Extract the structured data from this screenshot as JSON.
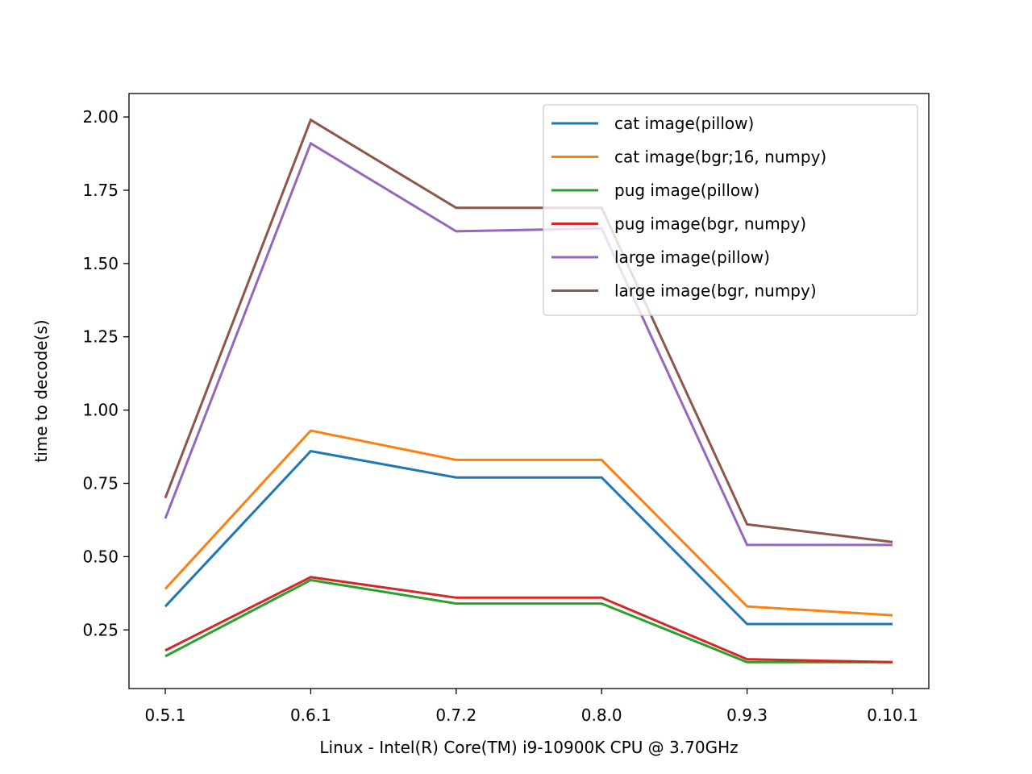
{
  "chart_data": {
    "type": "line",
    "title": "",
    "xlabel": "Linux - Intel(R) Core(TM) i9-10900K CPU @ 3.70GHz",
    "ylabel": "time to decode(s)",
    "categories": [
      "0.5.1",
      "0.6.1",
      "0.7.2",
      "0.8.0",
      "0.9.3",
      "0.10.1"
    ],
    "ylim": [
      0.05,
      2.08
    ],
    "yticks": [
      "0.25",
      "0.50",
      "0.75",
      "1.00",
      "1.25",
      "1.50",
      "1.75",
      "2.00"
    ],
    "grid": false,
    "legend_position": "top-right",
    "series": [
      {
        "name": "cat image(pillow)",
        "color": "#1f77b4",
        "values": [
          0.33,
          0.86,
          0.77,
          0.77,
          0.27,
          0.27
        ]
      },
      {
        "name": "cat image(bgr;16, numpy)",
        "color": "#ff7f0e",
        "values": [
          0.39,
          0.93,
          0.83,
          0.83,
          0.33,
          0.3
        ]
      },
      {
        "name": "pug image(pillow)",
        "color": "#2ca02c",
        "values": [
          0.16,
          0.42,
          0.34,
          0.34,
          0.14,
          0.14
        ]
      },
      {
        "name": "pug image(bgr, numpy)",
        "color": "#d62728",
        "values": [
          0.18,
          0.43,
          0.36,
          0.36,
          0.15,
          0.14
        ]
      },
      {
        "name": "large image(pillow)",
        "color": "#9467bd",
        "values": [
          0.63,
          1.91,
          1.61,
          1.62,
          0.54,
          0.54
        ]
      },
      {
        "name": "large image(bgr, numpy)",
        "color": "#8c564b",
        "values": [
          0.7,
          1.99,
          1.69,
          1.69,
          0.61,
          0.55
        ]
      }
    ]
  }
}
